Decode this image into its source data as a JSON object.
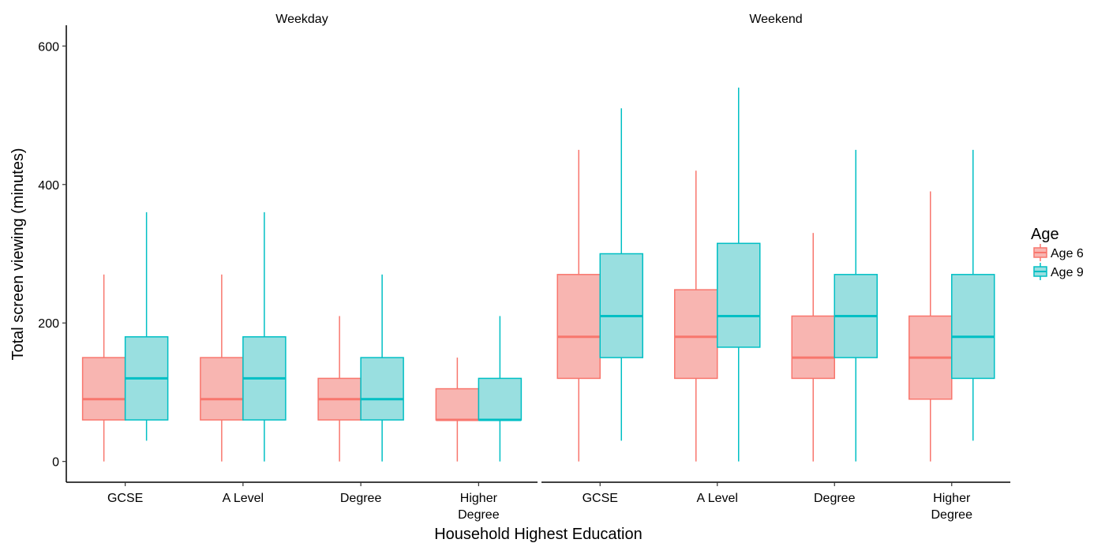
{
  "chart_data": {
    "type": "boxplot",
    "xlabel": "Household Highest Education",
    "ylabel": "Total screen viewing (minutes)",
    "ylim": [
      -30,
      630
    ],
    "yticks": [
      0,
      200,
      400,
      600
    ],
    "categories": [
      "GCSE",
      "A Level",
      "Degree",
      "Higher Degree"
    ],
    "category_lines": [
      [
        "GCSE"
      ],
      [
        "A Level"
      ],
      [
        "Degree"
      ],
      [
        "Higher",
        "Degree"
      ]
    ],
    "facets": [
      "Weekday",
      "Weekend"
    ],
    "grid": false,
    "legend": {
      "title": "Age",
      "position": "right",
      "entries": [
        "Age 6",
        "Age 9"
      ]
    },
    "series": [
      {
        "name": "Age 6",
        "color": "#F8766D",
        "fill": "#F8B5B1",
        "panels": [
          [
            {
              "min": 0,
              "q1": 60,
              "median": 90,
              "q3": 150,
              "max": 270
            },
            {
              "min": 0,
              "q1": 60,
              "median": 90,
              "q3": 150,
              "max": 270
            },
            {
              "min": 0,
              "q1": 60,
              "median": 90,
              "q3": 120,
              "max": 210
            },
            {
              "min": 0,
              "q1": 60,
              "median": 60,
              "q3": 105,
              "max": 150
            }
          ],
          [
            {
              "min": 0,
              "q1": 120,
              "median": 180,
              "q3": 270,
              "max": 450
            },
            {
              "min": 0,
              "q1": 120,
              "median": 180,
              "q3": 248,
              "max": 420
            },
            {
              "min": 0,
              "q1": 120,
              "median": 150,
              "q3": 210,
              "max": 330
            },
            {
              "min": 0,
              "q1": 90,
              "median": 150,
              "q3": 210,
              "max": 390
            }
          ]
        ]
      },
      {
        "name": "Age 9",
        "color": "#00BFC4",
        "fill": "#99DFE0",
        "panels": [
          [
            {
              "min": 30,
              "q1": 60,
              "median": 120,
              "q3": 180,
              "max": 360
            },
            {
              "min": 0,
              "q1": 60,
              "median": 120,
              "q3": 180,
              "max": 360
            },
            {
              "min": 0,
              "q1": 60,
              "median": 90,
              "q3": 150,
              "max": 270
            },
            {
              "min": 0,
              "q1": 60,
              "median": 60,
              "q3": 120,
              "max": 210
            }
          ],
          [
            {
              "min": 30,
              "q1": 150,
              "median": 210,
              "q3": 300,
              "max": 510
            },
            {
              "min": 0,
              "q1": 165,
              "median": 210,
              "q3": 315,
              "max": 540
            },
            {
              "min": 0,
              "q1": 150,
              "median": 210,
              "q3": 270,
              "max": 450
            },
            {
              "min": 30,
              "q1": 120,
              "median": 180,
              "q3": 270,
              "max": 450
            }
          ]
        ]
      }
    ]
  }
}
